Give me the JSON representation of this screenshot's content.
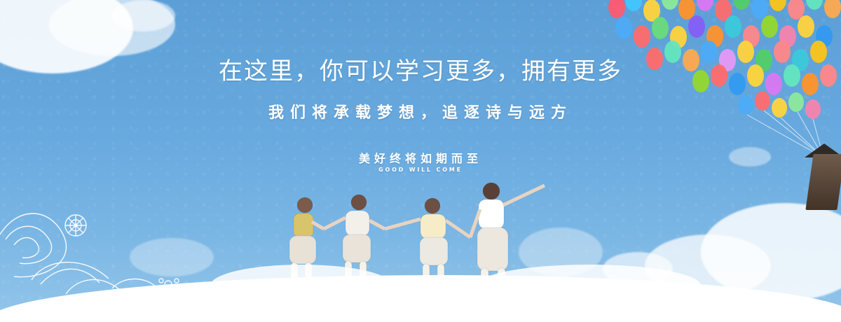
{
  "banner": {
    "headline": "在这里，你可以学习更多，拥有更多",
    "subheadline": "我们将承载梦想，追逐诗与远方",
    "slogan": "美好终将如期而至",
    "slogan_en": "GOOD WILL COME"
  },
  "colors": {
    "sky_top": "#5b9fd6",
    "sky_bottom": "#94c6ea",
    "text": "#ffffff"
  },
  "decorations": {
    "left_ornament": "lace-flower-pattern",
    "right_visual": "colorful-balloons"
  }
}
